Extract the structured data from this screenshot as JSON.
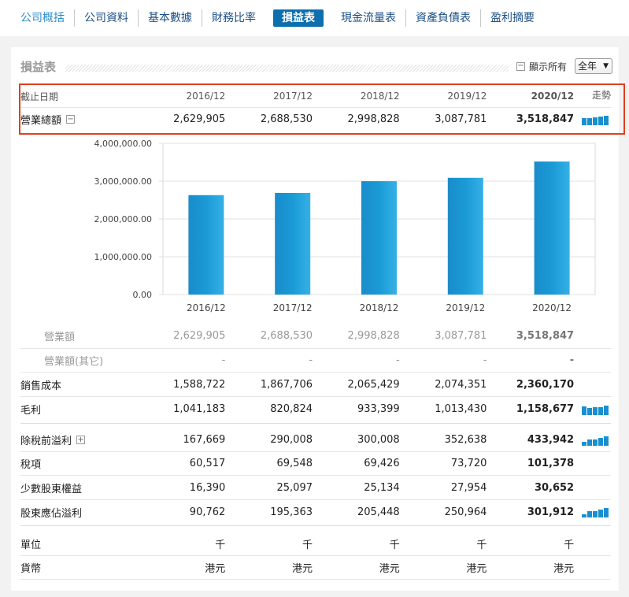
{
  "tabs": [
    {
      "label": "公司概括"
    },
    {
      "label": "公司資料"
    },
    {
      "label": "基本數據"
    },
    {
      "label": "財務比率"
    },
    {
      "label": "損益表"
    },
    {
      "label": "現金流量表"
    },
    {
      "label": "資產負債表"
    },
    {
      "label": "盈利摘要"
    }
  ],
  "section": {
    "title": "損益表",
    "show_all": "顯示所有",
    "period": "全年"
  },
  "header": {
    "label": "截止日期",
    "years": [
      "2016/12",
      "2017/12",
      "2018/12",
      "2019/12",
      "2020/12"
    ],
    "trend": "走勢"
  },
  "rows": {
    "total_revenue": {
      "label": "營業總額",
      "values": [
        "2,629,905",
        "2,688,530",
        "2,998,828",
        "3,087,781",
        "3,518,847"
      ]
    },
    "revenue": {
      "label": "營業額",
      "values": [
        "2,629,905",
        "2,688,530",
        "2,998,828",
        "3,087,781",
        "3,518,847"
      ]
    },
    "revenue_other": {
      "label": "營業額(其它)",
      "values": [
        "-",
        "-",
        "-",
        "-",
        "-"
      ]
    },
    "cost_of_sales": {
      "label": "銷售成本",
      "values": [
        "1,588,722",
        "1,867,706",
        "2,065,429",
        "2,074,351",
        "2,360,170"
      ]
    },
    "gross_profit": {
      "label": "毛利",
      "values": [
        "1,041,183",
        "820,824",
        "933,399",
        "1,013,430",
        "1,158,677"
      ]
    },
    "pretax_profit": {
      "label": "除稅前溢利",
      "values": [
        "167,669",
        "290,008",
        "300,008",
        "352,638",
        "433,942"
      ]
    },
    "tax": {
      "label": "稅項",
      "values": [
        "60,517",
        "69,548",
        "69,426",
        "73,720",
        "101,378"
      ]
    },
    "minority": {
      "label": "少數股東權益",
      "values": [
        "16,390",
        "25,097",
        "25,134",
        "27,954",
        "30,652"
      ]
    },
    "net_profit": {
      "label": "股東應佔溢利",
      "values": [
        "90,762",
        "195,363",
        "205,448",
        "250,964",
        "301,912"
      ]
    },
    "unit": {
      "label": "單位",
      "values": [
        "千",
        "千",
        "千",
        "千",
        "千"
      ]
    },
    "currency": {
      "label": "貨幣",
      "values": [
        "港元",
        "港元",
        "港元",
        "港元",
        "港元"
      ]
    }
  },
  "chart_data": {
    "type": "bar",
    "categories": [
      "2016/12",
      "2017/12",
      "2018/12",
      "2019/12",
      "2020/12"
    ],
    "values": [
      2629905,
      2688530,
      2998828,
      3087781,
      3518847
    ],
    "ylim": [
      0,
      4000000
    ],
    "yticks": [
      "0.00",
      "1,000,000.00",
      "2,000,000.00",
      "3,000,000.00",
      "4,000,000.00"
    ],
    "grid": true,
    "bar_color": "#1a9ad6",
    "title": "",
    "xlabel": "",
    "ylabel": ""
  },
  "sparklines": {
    "total_revenue": [
      2629905,
      2688530,
      2998828,
      3087781,
      3518847
    ],
    "gross_profit": [
      1041183,
      820824,
      933399,
      1013430,
      1158677
    ],
    "pretax_profit": [
      167669,
      290008,
      300008,
      352638,
      433942
    ],
    "net_profit": [
      90762,
      195363,
      205448,
      250964,
      301912
    ]
  },
  "colors": {
    "accent": "#0d6fae",
    "highlight": "#e0401d",
    "bar": "#1a9ad6"
  }
}
